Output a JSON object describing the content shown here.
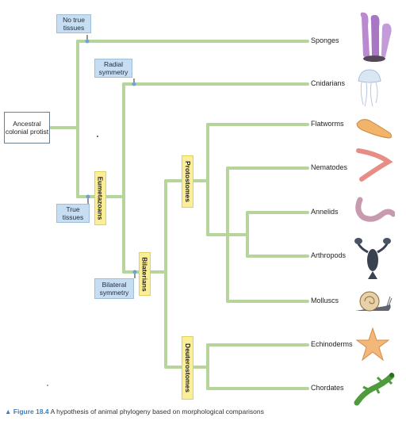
{
  "ancestor": "Ancestral colonial protist",
  "characters": {
    "no_true_tissues": "No true tissues",
    "radial_symmetry": "Radial symmetry",
    "true_tissues": "True tissues",
    "bilateral_symmetry": "Bilateral symmetry"
  },
  "clades": {
    "eumetazoans": "Eumetazoans",
    "bilaterians": "Bilaterians",
    "protostomes": "Protostomes",
    "deuterostomes": "Deuterostomes"
  },
  "taxa": [
    "Sponges",
    "Cnidarians",
    "Flatworms",
    "Nematodes",
    "Annelids",
    "Arthropods",
    "Molluscs",
    "Echinoderms",
    "Chordates"
  ],
  "organism_icons": [
    "sponge-icon",
    "jellyfish-icon",
    "flatworm-icon",
    "nematode-icon",
    "earthworm-icon",
    "lobster-icon",
    "snail-icon",
    "starfish-icon",
    "lizard-icon"
  ],
  "colors": {
    "branch": "#b5d59a",
    "character_box": "#c7ddf2",
    "clade_box": "#fbee99",
    "figure_label": "#3a7fc1"
  },
  "caption": {
    "label": "▲ Figure 18.4",
    "text": "A hypothesis of animal phylogeny based on morphological comparisons"
  }
}
